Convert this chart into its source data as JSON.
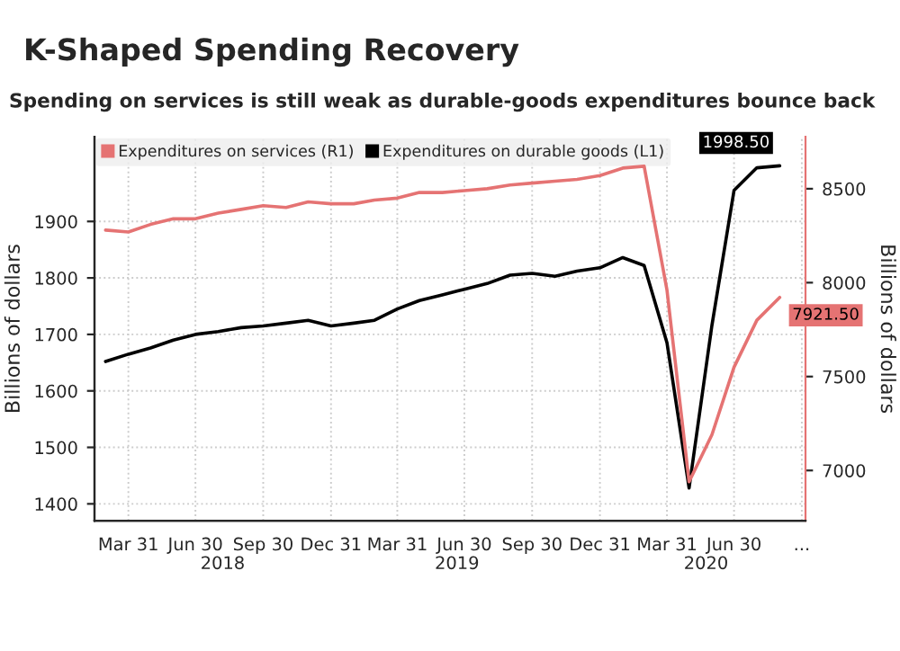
{
  "chart_data": {
    "type": "line",
    "title": "K-Shaped Spending Recovery",
    "subtitle": "Spending on services is still weak as durable-goods expenditures bounce back",
    "ylabel": "Billions of dollars",
    "y2label": "Billions of dollars",
    "x": [
      "2018-02-28",
      "2018-03-31",
      "2018-04-30",
      "2018-05-31",
      "2018-06-30",
      "2018-07-31",
      "2018-08-31",
      "2018-09-30",
      "2018-10-31",
      "2018-11-30",
      "2018-12-31",
      "2019-01-31",
      "2019-02-28",
      "2019-03-31",
      "2019-04-30",
      "2019-05-31",
      "2019-06-30",
      "2019-07-31",
      "2019-08-31",
      "2019-09-30",
      "2019-10-31",
      "2019-11-30",
      "2019-12-31",
      "2020-01-31",
      "2020-02-29",
      "2020-03-31",
      "2020-04-30",
      "2020-05-31",
      "2020-06-30",
      "2020-07-31",
      "2020-08-31"
    ],
    "series": [
      {
        "name": "Expenditures on services (R1)",
        "color": "#e57373",
        "axis": "y2",
        "values": [
          8280,
          8270,
          8310,
          8340,
          8340,
          8370,
          8390,
          8410,
          8400,
          8430,
          8420,
          8420,
          8440,
          8450,
          8480,
          8480,
          8490,
          8500,
          8520,
          8530,
          8540,
          8550,
          8570,
          8610,
          8620,
          7960,
          6940,
          7190,
          7550,
          7800,
          7921.5
        ],
        "value_labels": [
          null,
          null,
          null,
          null,
          null,
          null,
          null,
          null,
          null,
          null,
          null,
          null,
          null,
          null,
          null,
          null,
          null,
          null,
          null,
          null,
          null,
          null,
          null,
          null,
          null,
          null,
          null,
          null,
          null,
          null,
          "7921.50"
        ]
      },
      {
        "name": "Expenditures on durable goods (L1)",
        "color": "#000000",
        "axis": "y",
        "values": [
          1652,
          1665,
          1676,
          1690,
          1700,
          1705,
          1712,
          1715,
          1720,
          1725,
          1715,
          1720,
          1725,
          1745,
          1760,
          1770,
          1780,
          1790,
          1805,
          1808,
          1803,
          1812,
          1818,
          1836,
          1822,
          1685,
          1428,
          1716,
          1955,
          1995,
          1998.5
        ],
        "value_labels": [
          null,
          null,
          null,
          null,
          null,
          null,
          null,
          null,
          null,
          null,
          null,
          null,
          null,
          null,
          null,
          null,
          null,
          null,
          null,
          null,
          null,
          null,
          null,
          null,
          null,
          null,
          null,
          null,
          null,
          null,
          "1998.50"
        ]
      }
    ],
    "xlim": [
      "2018-02-13",
      "2020-10-05"
    ],
    "xticks": [
      {
        "value": "2018-03-31",
        "label": "Mar 31"
      },
      {
        "value": "2018-06-30",
        "label": "Jun 30"
      },
      {
        "value": "2018-09-30",
        "label": "Sep 30"
      },
      {
        "value": "2018-12-31",
        "label": "Dec 31"
      },
      {
        "value": "2019-03-31",
        "label": "Mar 31"
      },
      {
        "value": "2019-06-30",
        "label": "Jun 30"
      },
      {
        "value": "2019-09-30",
        "label": "Sep 30"
      },
      {
        "value": "2019-12-31",
        "label": "Dec 31"
      },
      {
        "value": "2020-03-31",
        "label": "Mar 31"
      },
      {
        "value": "2020-06-30",
        "label": "Jun 30"
      },
      {
        "value": "2020-09-30",
        "label": "..."
      }
    ],
    "x2lim": [
      "2018-02-13",
      "2020-10-05"
    ],
    "x2ticks": [
      {
        "value": "2018-08-06",
        "label": "2018"
      },
      {
        "value": "2019-06-20",
        "label": "2019"
      },
      {
        "value": "2020-05-23",
        "label": "2020"
      }
    ],
    "ylim": [
      1370,
      2050
    ],
    "yticks": [
      1400,
      1500,
      1600,
      1700,
      1800,
      1900
    ],
    "y2lim": [
      6732,
      8777
    ],
    "y2ticks": [
      7000,
      7500,
      8000,
      8500
    ],
    "grid": true,
    "legend": "top left",
    "line_style": "solid",
    "marker": "none"
  }
}
